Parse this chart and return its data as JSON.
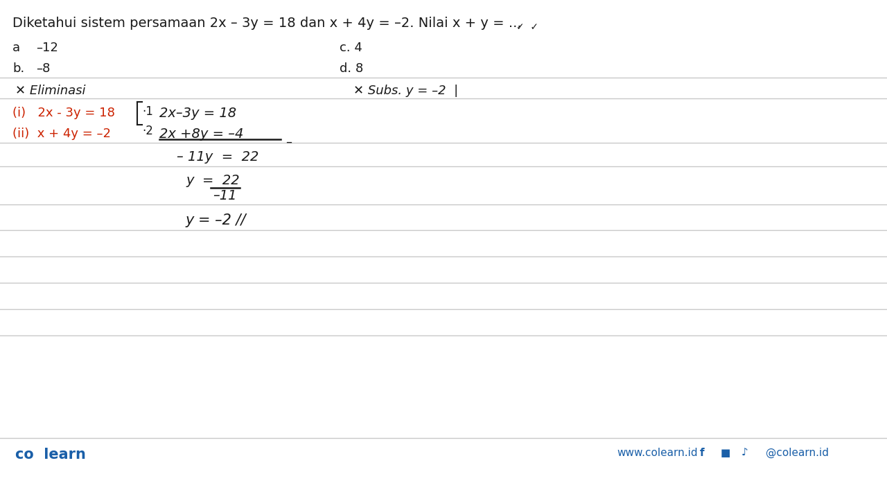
{
  "bg_color": "#ffffff",
  "title_text": "Diketahui sistem persamaan 2x – 3y = 18 dan x + 4y = –2. Nilai x + y = ...",
  "opt_a_label": "a",
  "opt_a_val": "–12",
  "opt_b_label": "b.",
  "opt_b_val": "–8",
  "opt_c": "c. 4",
  "opt_d": "d. 8",
  "checkmarks": "✓  ✓",
  "section_eliminasi": "✕ Eliminasi",
  "section_subs": "✕ Subs. y = –2  |",
  "eq1_label": "(i)   2x - 3y = 18",
  "eq2_label": "(ii)  x + 4y = –2",
  "mult1": "|·1|",
  "mult2": "|·2|",
  "hw_eq1": "2x–3y = 18",
  "hw_eq2": "2x +8y = –4",
  "step3": "– 11y  =  22",
  "step4a": "y  =  22",
  "step4b": "–11",
  "step5": "y = –2 //",
  "line_color": "#c8c8c8",
  "red_color": "#cc2200",
  "black_color": "#1a1a1a",
  "blue_color": "#1a5fa8",
  "footer_left": "co  learn",
  "footer_right": "www.colearn.id",
  "footer_social": "@colearn.id",
  "title_fontsize": 14,
  "body_fontsize": 13,
  "hw_fontsize": 14,
  "footer_fontsize": 12
}
